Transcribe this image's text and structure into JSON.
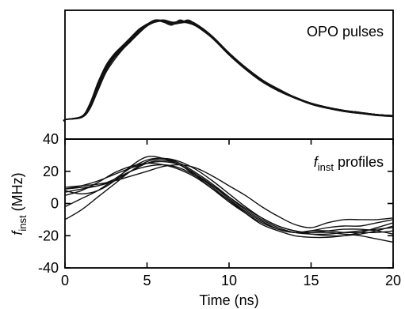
{
  "chart_data": [
    {
      "panel": "top",
      "type": "line",
      "label": "OPO pulses",
      "xlim": [
        0,
        20
      ],
      "y_ticks": "none",
      "series": [
        {
          "x": [
            -4,
            0,
            1,
            1.5,
            2,
            2.5,
            3,
            3.5,
            4,
            4.5,
            5,
            5.5,
            6,
            6.5,
            7,
            7.5,
            8,
            9,
            10,
            11,
            12,
            13,
            14,
            15,
            16,
            17,
            18,
            19,
            20
          ],
          "values": [
            0,
            0.02,
            0.05,
            0.15,
            0.35,
            0.52,
            0.64,
            0.72,
            0.8,
            0.88,
            0.94,
            0.98,
            0.98,
            0.95,
            0.97,
            0.98,
            0.94,
            0.82,
            0.66,
            0.52,
            0.4,
            0.31,
            0.24,
            0.18,
            0.14,
            0.11,
            0.09,
            0.07,
            0.06
          ]
        },
        {
          "x": [
            -4,
            0,
            1,
            1.5,
            2,
            2.5,
            3,
            3.5,
            4,
            4.5,
            5,
            5.5,
            6,
            6.5,
            7,
            7.5,
            8,
            9,
            10,
            11,
            12,
            13,
            14,
            15,
            16,
            17,
            18,
            19,
            20
          ],
          "values": [
            0,
            0.02,
            0.05,
            0.17,
            0.38,
            0.55,
            0.66,
            0.74,
            0.82,
            0.9,
            0.95,
            0.99,
            0.97,
            0.96,
            0.98,
            0.97,
            0.93,
            0.81,
            0.65,
            0.51,
            0.39,
            0.3,
            0.23,
            0.17,
            0.13,
            0.1,
            0.08,
            0.07,
            0.05
          ]
        },
        {
          "x": [
            -4,
            0,
            1,
            1.5,
            2,
            2.5,
            3,
            3.5,
            4,
            4.5,
            5,
            5.5,
            6,
            6.5,
            7,
            7.5,
            8,
            9,
            10,
            11,
            12,
            13,
            14,
            15,
            16,
            17,
            18,
            19,
            20
          ],
          "values": [
            0,
            0.02,
            0.04,
            0.12,
            0.3,
            0.48,
            0.6,
            0.7,
            0.78,
            0.86,
            0.93,
            0.97,
            0.99,
            0.97,
            0.96,
            0.97,
            0.95,
            0.83,
            0.67,
            0.53,
            0.41,
            0.32,
            0.24,
            0.18,
            0.14,
            0.11,
            0.09,
            0.07,
            0.06
          ]
        },
        {
          "x": [
            -4,
            0,
            1,
            1.5,
            2,
            2.5,
            3,
            3.5,
            4,
            4.5,
            5,
            5.5,
            6,
            6.5,
            7,
            7.5,
            8,
            9,
            10,
            11,
            12,
            13,
            14,
            15,
            16,
            17,
            18,
            19,
            20
          ],
          "values": [
            0,
            0.02,
            0.05,
            0.14,
            0.34,
            0.5,
            0.62,
            0.71,
            0.79,
            0.87,
            0.94,
            0.98,
            0.97,
            0.94,
            0.99,
            0.96,
            0.94,
            0.82,
            0.66,
            0.52,
            0.4,
            0.31,
            0.23,
            0.18,
            0.14,
            0.11,
            0.08,
            0.07,
            0.05
          ]
        },
        {
          "x": [
            -4,
            0,
            1,
            1.5,
            2,
            2.5,
            3,
            3.5,
            4,
            4.5,
            5,
            5.5,
            6,
            6.5,
            7,
            7.5,
            8,
            9,
            10,
            11,
            12,
            13,
            14,
            15,
            16,
            17,
            18,
            19,
            20
          ],
          "values": [
            0,
            0.02,
            0.05,
            0.16,
            0.36,
            0.53,
            0.65,
            0.73,
            0.81,
            0.89,
            0.95,
            0.97,
            0.98,
            0.96,
            0.97,
            0.98,
            0.95,
            0.82,
            0.66,
            0.52,
            0.4,
            0.31,
            0.24,
            0.18,
            0.14,
            0.11,
            0.09,
            0.07,
            0.06
          ]
        },
        {
          "x": [
            -4,
            0,
            1,
            1.5,
            2,
            2.5,
            3,
            3.5,
            4,
            4.5,
            5,
            5.5,
            6,
            6.5,
            7,
            7.5,
            8,
            9,
            10,
            11,
            12,
            13,
            14,
            15,
            16,
            17,
            18,
            19,
            20
          ],
          "values": [
            0,
            0.02,
            0.04,
            0.13,
            0.32,
            0.5,
            0.63,
            0.72,
            0.8,
            0.88,
            0.94,
            0.99,
            0.98,
            0.95,
            0.96,
            0.99,
            0.94,
            0.81,
            0.65,
            0.51,
            0.39,
            0.3,
            0.23,
            0.17,
            0.13,
            0.1,
            0.08,
            0.06,
            0.05
          ]
        },
        {
          "x": [
            -4,
            0,
            1,
            1.5,
            2,
            2.5,
            3,
            3.5,
            4,
            4.5,
            5,
            5.5,
            6,
            6.5,
            7,
            7.5,
            8,
            9,
            10,
            11,
            12,
            13,
            14,
            15,
            16,
            17,
            18,
            19,
            20
          ],
          "values": [
            0,
            0.02,
            0.05,
            0.15,
            0.37,
            0.54,
            0.65,
            0.73,
            0.81,
            0.89,
            0.95,
            0.98,
            0.99,
            0.97,
            0.97,
            0.96,
            0.93,
            0.82,
            0.67,
            0.53,
            0.41,
            0.31,
            0.24,
            0.18,
            0.14,
            0.11,
            0.09,
            0.07,
            0.06
          ]
        }
      ]
    },
    {
      "panel": "bottom",
      "type": "line",
      "label_main": "f",
      "label_sub": "inst",
      "label_rest": " profiles",
      "xlabel": "Time (ns)",
      "ylabel_main": "f",
      "ylabel_sub": "inst",
      "ylabel_rest": " (MHz)",
      "xlim": [
        0,
        20
      ],
      "ylim": [
        -40,
        40
      ],
      "x_ticks": [
        0,
        5,
        10,
        15,
        20
      ],
      "y_ticks": [
        -40,
        -20,
        0,
        20,
        40
      ],
      "x_tick_labels": [
        "0",
        "5",
        "10",
        "15",
        "20"
      ],
      "y_tick_labels": [
        "-40",
        "-20",
        "0",
        "20",
        "40"
      ],
      "series": [
        {
          "x": [
            0,
            1,
            2,
            3,
            4,
            5,
            6,
            7,
            8,
            9,
            10,
            11,
            12,
            13,
            14,
            15,
            16,
            17,
            18,
            19,
            20
          ],
          "values": [
            7,
            9,
            11,
            14,
            20,
            25,
            27,
            24,
            18,
            10,
            2,
            -5,
            -11,
            -16,
            -18,
            -17,
            -15,
            -14,
            -14,
            -12,
            -10
          ]
        },
        {
          "x": [
            0,
            1,
            2,
            3,
            4,
            5,
            6,
            7,
            8,
            9,
            10,
            11,
            12,
            13,
            14,
            15,
            16,
            17,
            18,
            19,
            20
          ],
          "values": [
            -2,
            3,
            8,
            15,
            22,
            27,
            28,
            25,
            19,
            12,
            4,
            -4,
            -10,
            -15,
            -18,
            -19,
            -19,
            -18,
            -17,
            -16,
            -15
          ]
        },
        {
          "x": [
            0,
            1,
            2,
            3,
            4,
            5,
            6,
            7,
            8,
            9,
            10,
            11,
            12,
            13,
            14,
            15,
            16,
            17,
            18,
            19,
            20
          ],
          "values": [
            -10,
            -4,
            4,
            12,
            20,
            26,
            28,
            26,
            21,
            14,
            6,
            -2,
            -9,
            -14,
            -17,
            -19,
            -20,
            -20,
            -19,
            -17,
            -14
          ]
        },
        {
          "x": [
            0,
            1,
            2,
            3,
            4,
            5,
            6,
            7,
            8,
            9,
            10,
            11,
            12,
            13,
            14,
            15,
            16,
            17,
            18,
            19,
            20
          ],
          "values": [
            10,
            11,
            12,
            14,
            17,
            20,
            23,
            24,
            22,
            17,
            11,
            5,
            -2,
            -8,
            -13,
            -15,
            -12,
            -10,
            -10,
            -10,
            -9
          ]
        },
        {
          "x": [
            0,
            1,
            2,
            3,
            4,
            5,
            6,
            7,
            8,
            9,
            10,
            11,
            12,
            13,
            14,
            15,
            16,
            17,
            18,
            19,
            20
          ],
          "values": [
            8,
            6,
            8,
            14,
            23,
            29,
            28,
            24,
            17,
            9,
            1,
            -6,
            -12,
            -16,
            -18,
            -18,
            -18,
            -19,
            -20,
            -22,
            -24
          ]
        },
        {
          "x": [
            0,
            1,
            2,
            3,
            4,
            5,
            6,
            7,
            8,
            9,
            10,
            11,
            12,
            13,
            14,
            15,
            16,
            17,
            18,
            19,
            20
          ],
          "values": [
            9,
            11,
            14,
            18,
            22,
            25,
            26,
            24,
            18,
            11,
            3,
            -5,
            -11,
            -16,
            -18,
            -17,
            -17,
            -18,
            -18,
            -18,
            -17
          ]
        },
        {
          "x": [
            0,
            1,
            2,
            3,
            4,
            5,
            6,
            7,
            8,
            9,
            10,
            11,
            12,
            13,
            14,
            15,
            16,
            17,
            18,
            19,
            20
          ],
          "values": [
            5,
            8,
            13,
            19,
            23,
            25,
            24,
            21,
            16,
            9,
            2,
            -6,
            -13,
            -17,
            -20,
            -21,
            -21,
            -20,
            -18,
            -15,
            -12
          ]
        },
        {
          "x": [
            0,
            1,
            2,
            3,
            4,
            5,
            6,
            7,
            8,
            9,
            10,
            11,
            12,
            13,
            14,
            15,
            16,
            17,
            18,
            19,
            20
          ],
          "values": [
            9,
            10,
            11,
            15,
            20,
            23,
            24,
            22,
            17,
            11,
            4,
            -3,
            -9,
            -14,
            -17,
            -18,
            -17,
            -16,
            -16,
            -17,
            -19
          ]
        }
      ]
    }
  ]
}
